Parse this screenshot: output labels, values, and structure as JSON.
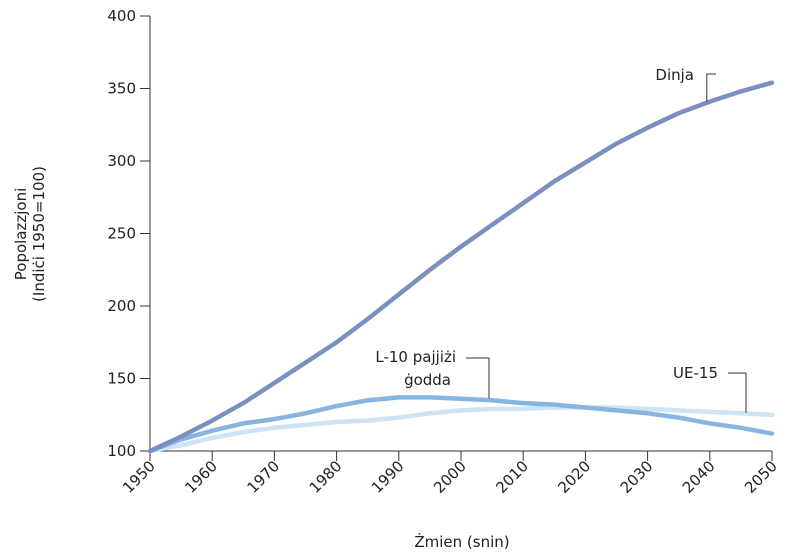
{
  "chart_data": {
    "type": "line",
    "title": "",
    "xlabel": "Żmien (snin)",
    "ylabel_lines": [
      "Popolazzjoni",
      "(Indiċi 1950=100)"
    ],
    "xlim": [
      1950,
      2050
    ],
    "ylim": [
      100,
      400
    ],
    "x_ticks": [
      1950,
      1960,
      1970,
      1980,
      1990,
      2000,
      2010,
      2020,
      2030,
      2040,
      2050
    ],
    "y_ticks": [
      100,
      150,
      200,
      250,
      300,
      350,
      400
    ],
    "x": [
      1950,
      1955,
      1960,
      1965,
      1970,
      1975,
      1980,
      1985,
      1990,
      1995,
      2000,
      2005,
      2010,
      2015,
      2020,
      2025,
      2030,
      2035,
      2040,
      2045,
      2050
    ],
    "series": [
      {
        "name": "Dinja",
        "color": "#7b8fc0",
        "values": [
          100,
          110,
          121,
          133,
          147,
          161,
          175,
          191,
          208,
          225,
          241,
          256,
          271,
          286,
          299,
          312,
          323,
          333,
          341,
          348,
          354
        ]
      },
      {
        "name": "L-10 pajjiżi ġodda",
        "name_lines": [
          "L-10 pajjiżi",
          "ġodda"
        ],
        "color": "#88b4e0",
        "values": [
          100,
          108,
          114,
          119,
          122,
          126,
          131,
          135,
          137,
          137,
          136,
          135,
          133,
          132,
          130,
          128,
          126,
          123,
          119,
          116,
          112
        ]
      },
      {
        "name": "UE-15",
        "color": "#cde3f6",
        "values": [
          100,
          104,
          109,
          113,
          116,
          118,
          120,
          121,
          123,
          126,
          128,
          129,
          129,
          130,
          130,
          130,
          129,
          128,
          127,
          126,
          125
        ]
      }
    ]
  }
}
